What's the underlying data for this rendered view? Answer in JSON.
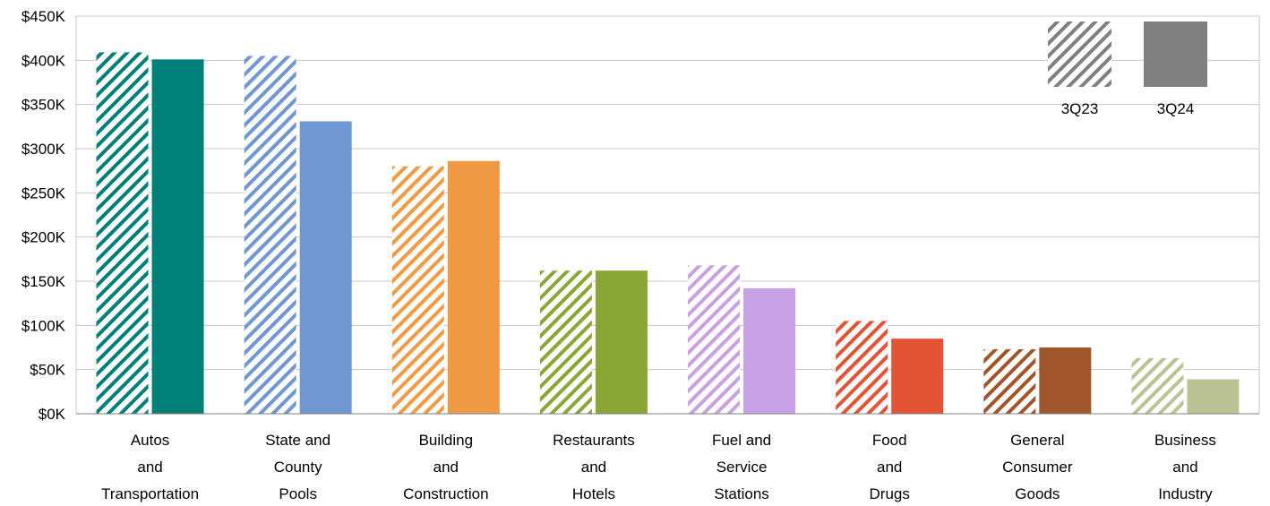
{
  "chart_data": {
    "type": "bar",
    "title": "",
    "xlabel": "",
    "ylabel": "",
    "ylim": [
      0,
      450000
    ],
    "yticks": [
      0,
      50000,
      100000,
      150000,
      200000,
      250000,
      300000,
      350000,
      400000,
      450000
    ],
    "ytick_labels": [
      "$0K",
      "$50K",
      "$100K",
      "$150K",
      "$200K",
      "$250K",
      "$300K",
      "$350K",
      "$400K",
      "$450K"
    ],
    "grid": true,
    "legend_position": "top-right",
    "categories": [
      [
        "Autos",
        "and",
        "Transportation"
      ],
      [
        "State and",
        "County",
        "Pools"
      ],
      [
        "Building",
        "and",
        "Construction"
      ],
      [
        "Restaurants",
        "and",
        "Hotels"
      ],
      [
        "Fuel and",
        "Service",
        "Stations"
      ],
      [
        "Food",
        "and",
        "Drugs"
      ],
      [
        "General",
        "Consumer",
        "Goods"
      ],
      [
        "Business",
        "and",
        "Industry"
      ]
    ],
    "category_colors": [
      "#007f79",
      "#7097d1",
      "#f09a46",
      "#8aa637",
      "#c7a1e3",
      "#e35335",
      "#a0552a",
      "#bbc294"
    ],
    "series": [
      {
        "name": "3Q23",
        "pattern": "hatched",
        "legend_color": "#808080",
        "values": [
          409000,
          405000,
          280000,
          162000,
          168000,
          105000,
          73000,
          63000
        ]
      },
      {
        "name": "3Q24",
        "pattern": "solid",
        "legend_color": "#808080",
        "values": [
          401000,
          331000,
          286000,
          162000,
          142000,
          85000,
          75000,
          39000
        ]
      }
    ]
  }
}
